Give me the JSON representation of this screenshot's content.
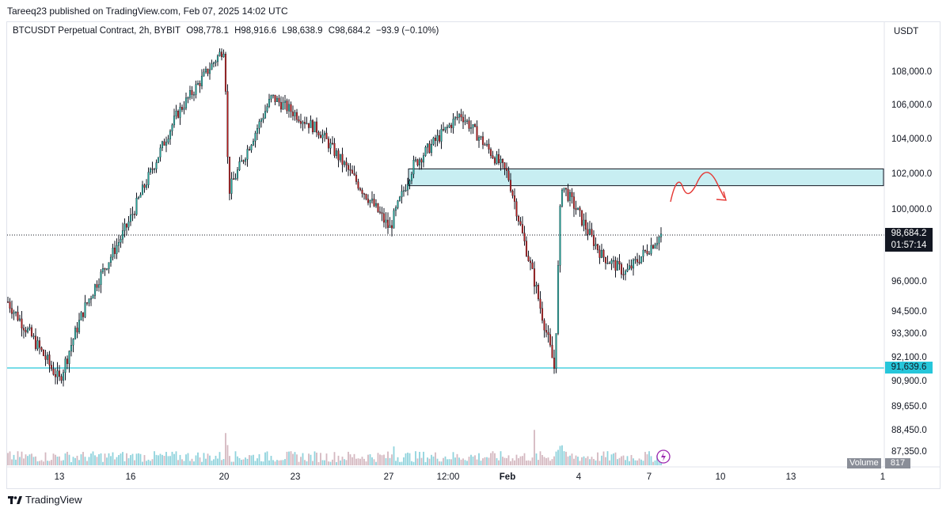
{
  "header": {
    "publisher_text": "Tareeq23 published on TradingView.com, Feb 07, 2025 14:02 UTC"
  },
  "legend": {
    "symbol": "BTCUSDT Perpetual Contract, 2h, BYBIT",
    "open": "O98,778.1",
    "high": "H98,916.6",
    "low": "L98,638.9",
    "close": "C98,684.2",
    "change": "−93.9 (−0.10%)"
  },
  "price_axis": {
    "unit": "USDT",
    "labels": [
      "108,000.0",
      "106,000.0",
      "104,000.0",
      "102,000.0",
      "100,000.0",
      "96,000.0",
      "94,500.0",
      "93,300.0",
      "92,100.0",
      "90,900.0",
      "89,650.0",
      "88,450.0",
      "87,350.0"
    ]
  },
  "last_price": {
    "price": "98,684.2",
    "countdown": "01:57:14"
  },
  "support_level": {
    "label": "91,639.6"
  },
  "volume": {
    "label": "Volume",
    "value": "817"
  },
  "time_axis": {
    "labels": [
      "13",
      "16",
      "20",
      "23",
      "27",
      "12:00",
      "Feb",
      "4",
      "7",
      "10",
      "13",
      "1"
    ]
  },
  "footer": {
    "brand": "TradingView"
  },
  "colors": {
    "up": "#26a69a",
    "down": "#b71c1c",
    "wick": "#131722",
    "zone_fill": "#c8eef2",
    "zone_border": "#131722",
    "support_line": "#26c6da",
    "volume_up": "#8fd3dc",
    "volume_down": "#d4b8c0",
    "annotation": "#e53935"
  },
  "chart_data": {
    "type": "candlestick",
    "symbol": "BTCUSDT Perpetual Contract",
    "interval": "2h",
    "exchange": "BYBIT",
    "x_ticks": [
      "13",
      "16",
      "20",
      "23",
      "27",
      "12:00",
      "Feb",
      "4",
      "7",
      "10",
      "13",
      "1"
    ],
    "y_unit": "USDT",
    "last_close": 98684.2,
    "demand_zone": {
      "low": 101350,
      "high": 102300
    },
    "support_level": 91639.6,
    "key_path": [
      {
        "x": "Jan 12",
        "price": 95000
      },
      {
        "x": "Jan 13",
        "price": 91000
      },
      {
        "x": "Jan 14",
        "price": 94500
      },
      {
        "x": "Jan 16",
        "price": 99500
      },
      {
        "x": "Jan 18",
        "price": 105500
      },
      {
        "x": "Jan 20",
        "price": 109500
      },
      {
        "x": "Jan 20",
        "price": 101000
      },
      {
        "x": "Jan 22",
        "price": 106500
      },
      {
        "x": "Jan 24",
        "price": 104500
      },
      {
        "x": "Jan 27",
        "price": 99000
      },
      {
        "x": "Jan 28",
        "price": 102500
      },
      {
        "x": "Jan 30",
        "price": 105500
      },
      {
        "x": "Feb 1",
        "price": 102000
      },
      {
        "x": "Feb 3",
        "price": 91500
      },
      {
        "x": "Feb 3",
        "price": 101500
      },
      {
        "x": "Feb 5",
        "price": 97500
      },
      {
        "x": "Feb 6",
        "price": 96500
      },
      {
        "x": "Feb 7",
        "price": 98684
      }
    ],
    "volume_last": 817
  }
}
